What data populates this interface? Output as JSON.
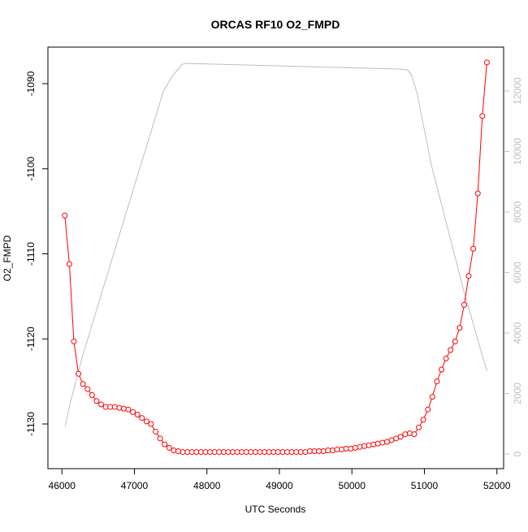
{
  "chart_data": {
    "type": "line",
    "title": "ORCAS RF10 O2_FMPD",
    "x_label": "UTC Seconds",
    "y_label": "O2_FMPD",
    "xlim": [
      45807,
      52093
    ],
    "xticks": [
      46000,
      47000,
      48000,
      49000,
      50000,
      51000,
      52000
    ],
    "ylim": [
      -1135.25,
      -1085.7
    ],
    "yticks": [
      -1130,
      -1120,
      -1110,
      -1100,
      -1090
    ],
    "y2lim": [
      -483,
      13450
    ],
    "y2ticks": [
      0,
      2000,
      4000,
      6000,
      8000,
      10000,
      12000
    ],
    "y2_color": "#bebebe",
    "series": [
      {
        "color": "#ff0000",
        "marker": "circle",
        "x": [
          46040,
          46103,
          46165,
          46228,
          46290,
          46353,
          46416,
          46478,
          46541,
          46603,
          46666,
          46729,
          46791,
          46854,
          46916,
          46979,
          47042,
          47104,
          47167,
          47229,
          47292,
          47355,
          47417,
          47480,
          47542,
          47605,
          47668,
          47730,
          47793,
          47855,
          47918,
          47981,
          48043,
          48106,
          48168,
          48231,
          48294,
          48356,
          48419,
          48481,
          48544,
          48607,
          48669,
          48732,
          48794,
          48857,
          48920,
          48982,
          49045,
          49107,
          49170,
          49233,
          49295,
          49358,
          49420,
          49483,
          49546,
          49608,
          49671,
          49733,
          49796,
          49859,
          49921,
          49984,
          50046,
          50109,
          50172,
          50234,
          50297,
          50359,
          50422,
          50485,
          50547,
          50610,
          50672,
          50735,
          50798,
          50860,
          50923,
          50985,
          51048,
          51111,
          51173,
          51236,
          51298,
          51361,
          51424,
          51486,
          51549,
          51611,
          51674,
          51737,
          51799,
          51862
        ],
        "values": [
          -1105.5,
          -1111.2,
          -1120.3,
          -1124.1,
          -1125.3,
          -1125.9,
          -1126.6,
          -1127.3,
          -1127.7,
          -1128.0,
          -1128.0,
          -1128.0,
          -1128.1,
          -1128.2,
          -1128.3,
          -1128.6,
          -1128.9,
          -1129.3,
          -1129.7,
          -1130.0,
          -1130.9,
          -1131.7,
          -1132.4,
          -1132.8,
          -1133.1,
          -1133.2,
          -1133.3,
          -1133.3,
          -1133.3,
          -1133.3,
          -1133.3,
          -1133.3,
          -1133.3,
          -1133.3,
          -1133.3,
          -1133.3,
          -1133.3,
          -1133.3,
          -1133.3,
          -1133.3,
          -1133.3,
          -1133.3,
          -1133.3,
          -1133.3,
          -1133.3,
          -1133.3,
          -1133.3,
          -1133.3,
          -1133.3,
          -1133.3,
          -1133.3,
          -1133.3,
          -1133.3,
          -1133.3,
          -1133.2,
          -1133.2,
          -1133.2,
          -1133.2,
          -1133.1,
          -1133.1,
          -1133.0,
          -1133.0,
          -1132.9,
          -1132.9,
          -1132.8,
          -1132.7,
          -1132.6,
          -1132.5,
          -1132.4,
          -1132.3,
          -1132.2,
          -1132.1,
          -1131.9,
          -1131.7,
          -1131.5,
          -1131.2,
          -1131.1,
          -1131.2,
          -1130.4,
          -1129.5,
          -1128.3,
          -1126.8,
          -1125.0,
          -1123.6,
          -1122.3,
          -1121.3,
          -1120.3,
          -1118.7,
          -1116.0,
          -1112.6,
          -1109.4,
          -1102.9,
          -1093.8,
          -1087.5
        ]
      },
      {
        "color": "#bebebe",
        "axis": "y2",
        "x": [
          46045,
          46112,
          46280,
          46841,
          47401,
          47513,
          47648,
          47693,
          50652,
          50765,
          50821,
          50899,
          51101,
          51549,
          51774,
          51863
        ],
        "values": [
          913,
          1664,
          3195,
          7624,
          12000,
          12456,
          12859,
          12913,
          12725,
          12698,
          12537,
          11919,
          9503,
          5342,
          3463,
          2738
        ]
      }
    ]
  }
}
